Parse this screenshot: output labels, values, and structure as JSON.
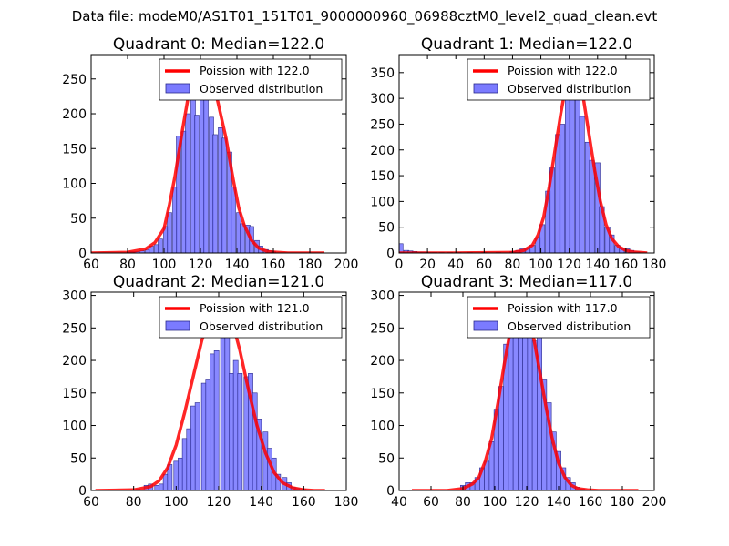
{
  "figure": {
    "suptitle": "Data file: modeM0/AS1T01_151T01_9000000960_06988cztM0_level2_quad_clean.evt",
    "colors": {
      "bars": "#7b7bff",
      "bar_edge": "#2a2a8c",
      "fit": "#ff0000",
      "axes": "#000000"
    }
  },
  "chart_data": [
    {
      "type": "bar",
      "title": "Quadrant 0: Median=122.0",
      "xlim": [
        60,
        200
      ],
      "ylim": [
        0,
        285
      ],
      "xticks": [
        60,
        80,
        100,
        120,
        140,
        160,
        180,
        200
      ],
      "yticks": [
        0,
        50,
        100,
        150,
        200,
        250
      ],
      "legend_loc": "top-right",
      "legend": [
        "Poission with 122.0",
        "Observed distribution"
      ],
      "bin_width": 2.5,
      "bins": [
        [
          82,
          2
        ],
        [
          85,
          2
        ],
        [
          88,
          3
        ],
        [
          91,
          5
        ],
        [
          93,
          10
        ],
        [
          96,
          12
        ],
        [
          98,
          20
        ],
        [
          101,
          38
        ],
        [
          103,
          58
        ],
        [
          106,
          95
        ],
        [
          108,
          168
        ],
        [
          111,
          175
        ],
        [
          113,
          200
        ],
        [
          116,
          225
        ],
        [
          118,
          198
        ],
        [
          121,
          272
        ],
        [
          123,
          250
        ],
        [
          126,
          195
        ],
        [
          128,
          170
        ],
        [
          131,
          180
        ],
        [
          133,
          165
        ],
        [
          136,
          145
        ],
        [
          138,
          95
        ],
        [
          141,
          58
        ],
        [
          143,
          42
        ],
        [
          146,
          40
        ],
        [
          148,
          38
        ],
        [
          151,
          18
        ],
        [
          153,
          10
        ],
        [
          156,
          5
        ],
        [
          158,
          3
        ],
        [
          160,
          2
        ]
      ],
      "fit": {
        "label": "Poission with 122.0",
        "x": [
          60,
          80,
          90,
          95,
          100,
          103,
          106,
          110,
          113,
          116,
          120,
          122,
          124,
          128,
          131,
          134,
          138,
          141,
          144,
          148,
          152,
          157,
          162,
          168,
          175,
          188
        ],
        "y": [
          0,
          1,
          6,
          15,
          35,
          70,
          110,
          175,
          220,
          250,
          272,
          272,
          265,
          235,
          200,
          165,
          105,
          65,
          40,
          18,
          7,
          2,
          1,
          0,
          0,
          0
        ]
      }
    },
    {
      "type": "bar",
      "title": "Quadrant 1: Median=122.0",
      "xlim": [
        0,
        180
      ],
      "ylim": [
        0,
        385
      ],
      "xticks": [
        0,
        20,
        40,
        60,
        80,
        100,
        120,
        140,
        160,
        180
      ],
      "yticks": [
        0,
        50,
        100,
        150,
        200,
        250,
        300,
        350
      ],
      "legend_loc": "top-right",
      "legend": [
        "Poission with 122.0",
        "Observed distribution"
      ],
      "bin_width": 3.5,
      "bins": [
        [
          1,
          18
        ],
        [
          5,
          5
        ],
        [
          8,
          4
        ],
        [
          11,
          3
        ],
        [
          14,
          2
        ],
        [
          17,
          2
        ],
        [
          21,
          1
        ],
        [
          25,
          1
        ],
        [
          30,
          1
        ],
        [
          36,
          1
        ],
        [
          42,
          1
        ],
        [
          50,
          1
        ],
        [
          60,
          1
        ],
        [
          70,
          1
        ],
        [
          80,
          3
        ],
        [
          84,
          5
        ],
        [
          87,
          8
        ],
        [
          91,
          10
        ],
        [
          94,
          15
        ],
        [
          98,
          30
        ],
        [
          101,
          55
        ],
        [
          105,
          120
        ],
        [
          108,
          165
        ],
        [
          112,
          230
        ],
        [
          115,
          250
        ],
        [
          119,
          300
        ],
        [
          122,
          340
        ],
        [
          126,
          365
        ],
        [
          129,
          265
        ],
        [
          133,
          215
        ],
        [
          136,
          180
        ],
        [
          140,
          175
        ],
        [
          143,
          90
        ],
        [
          147,
          50
        ],
        [
          150,
          35
        ],
        [
          154,
          15
        ],
        [
          157,
          10
        ],
        [
          161,
          8
        ],
        [
          164,
          5
        ],
        [
          168,
          2
        ]
      ],
      "fit": {
        "label": "Poission with 122.0",
        "x": [
          0,
          40,
          80,
          88,
          94,
          98,
          102,
          106,
          110,
          114,
          118,
          122,
          126,
          130,
          134,
          138,
          142,
          146,
          150,
          155,
          160,
          165,
          170,
          175
        ],
        "y": [
          0,
          0,
          1,
          5,
          15,
          35,
          70,
          130,
          200,
          270,
          330,
          370,
          350,
          300,
          230,
          160,
          100,
          55,
          28,
          12,
          5,
          2,
          1,
          0
        ]
      }
    },
    {
      "type": "bar",
      "title": "Quadrant 2: Median=121.0",
      "xlim": [
        60,
        180
      ],
      "ylim": [
        0,
        305
      ],
      "xticks": [
        60,
        80,
        100,
        120,
        140,
        160,
        180
      ],
      "yticks": [
        0,
        50,
        100,
        150,
        200,
        250,
        300
      ],
      "legend_loc": "top-right",
      "legend": [
        "Poission with 121.0",
        "Observed distribution"
      ],
      "bin_width": 2.2,
      "bins": [
        [
          62,
          1
        ],
        [
          82,
          2
        ],
        [
          86,
          8
        ],
        [
          88,
          10
        ],
        [
          91,
          8
        ],
        [
          93,
          10
        ],
        [
          95,
          25
        ],
        [
          97,
          40
        ],
        [
          100,
          45
        ],
        [
          102,
          50
        ],
        [
          104,
          80
        ],
        [
          106,
          95
        ],
        [
          108,
          130
        ],
        [
          110,
          135
        ],
        [
          113,
          165
        ],
        [
          115,
          170
        ],
        [
          117,
          210
        ],
        [
          119,
          215
        ],
        [
          122,
          235
        ],
        [
          124,
          275
        ],
        [
          126,
          180
        ],
        [
          128,
          200
        ],
        [
          130,
          180
        ],
        [
          133,
          175
        ],
        [
          135,
          180
        ],
        [
          137,
          150
        ],
        [
          139,
          110
        ],
        [
          142,
          90
        ],
        [
          144,
          65
        ],
        [
          146,
          50
        ],
        [
          148,
          25
        ],
        [
          151,
          20
        ],
        [
          153,
          12
        ],
        [
          155,
          5
        ],
        [
          157,
          3
        ],
        [
          160,
          2
        ]
      ],
      "fit": {
        "label": "Poission with 121.0",
        "x": [
          62,
          80,
          88,
          92,
          96,
          100,
          104,
          108,
          112,
          116,
          119,
          121,
          123,
          126,
          130,
          134,
          138,
          142,
          146,
          150,
          155,
          160,
          165,
          170
        ],
        "y": [
          0,
          1,
          6,
          15,
          35,
          70,
          120,
          175,
          230,
          270,
          288,
          290,
          285,
          265,
          215,
          155,
          100,
          58,
          28,
          12,
          4,
          1,
          0,
          0
        ]
      }
    },
    {
      "type": "bar",
      "title": "Quadrant 3: Median=117.0",
      "xlim": [
        40,
        200
      ],
      "ylim": [
        0,
        305
      ],
      "xticks": [
        40,
        60,
        80,
        100,
        120,
        140,
        160,
        180,
        200
      ],
      "yticks": [
        0,
        50,
        100,
        150,
        200,
        250,
        300
      ],
      "legend_loc": "top-right",
      "legend": [
        "Poission with 117.0",
        "Observed distribution"
      ],
      "bin_width": 3.0,
      "bins": [
        [
          48,
          1
        ],
        [
          70,
          1
        ],
        [
          80,
          8
        ],
        [
          83,
          12
        ],
        [
          86,
          12
        ],
        [
          89,
          20
        ],
        [
          92,
          35
        ],
        [
          95,
          45
        ],
        [
          98,
          75
        ],
        [
          101,
          125
        ],
        [
          104,
          160
        ],
        [
          107,
          225
        ],
        [
          110,
          260
        ],
        [
          113,
          250
        ],
        [
          116,
          290
        ],
        [
          119,
          255
        ],
        [
          122,
          260
        ],
        [
          125,
          230
        ],
        [
          128,
          250
        ],
        [
          131,
          170
        ],
        [
          134,
          135
        ],
        [
          137,
          90
        ],
        [
          140,
          60
        ],
        [
          143,
          35
        ],
        [
          146,
          20
        ],
        [
          149,
          12
        ],
        [
          152,
          5
        ],
        [
          155,
          2
        ],
        [
          160,
          1
        ]
      ],
      "fit": {
        "label": "Poission with 117.0",
        "x": [
          48,
          70,
          80,
          86,
          90,
          94,
          98,
          102,
          106,
          110,
          114,
          117,
          120,
          124,
          128,
          132,
          136,
          140,
          144,
          148,
          152,
          158,
          165,
          175,
          190
        ],
        "y": [
          0,
          0,
          3,
          10,
          20,
          45,
          80,
          135,
          195,
          250,
          285,
          290,
          280,
          240,
          185,
          130,
          80,
          42,
          20,
          8,
          3,
          1,
          0,
          0,
          0
        ]
      }
    }
  ]
}
